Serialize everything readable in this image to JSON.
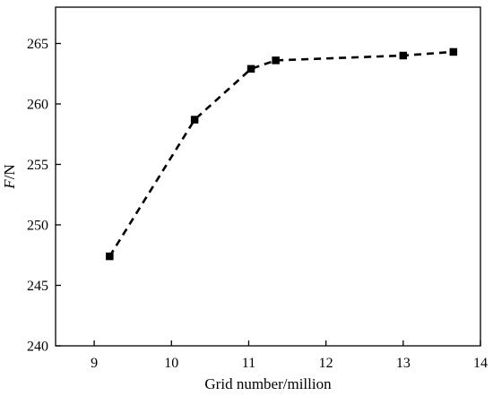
{
  "chart_data": {
    "type": "line",
    "xlabel": "Grid number/million",
    "ylabel_italic": "F",
    "ylabel_rest": "/N",
    "xlim": [
      8.5,
      14
    ],
    "ylim": [
      240,
      268
    ],
    "xticks": [
      9,
      10,
      11,
      12,
      13,
      14
    ],
    "yticks": [
      240,
      245,
      250,
      255,
      260,
      265
    ],
    "grid": false,
    "legend": "none",
    "line_style": "dashed",
    "marker": "square",
    "color": "#000000",
    "series": [
      {
        "x": [
          9.2,
          10.3,
          11.03,
          11.35,
          13.0,
          13.65
        ],
        "y": [
          247.4,
          258.7,
          262.9,
          263.6,
          264.0,
          264.3
        ]
      }
    ]
  }
}
